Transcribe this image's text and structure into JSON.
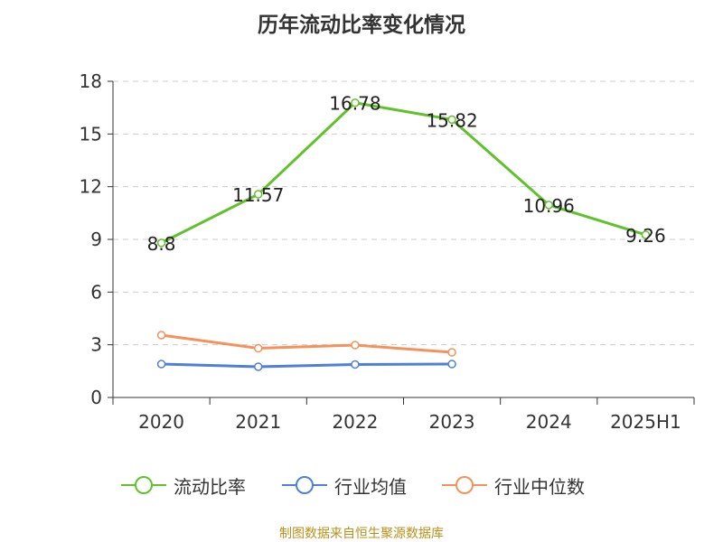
{
  "chart_data": {
    "type": "line",
    "title": "历年流动比率变化情况",
    "categories": [
      "2020",
      "2021",
      "2022",
      "2023",
      "2024",
      "2025H1"
    ],
    "ylim": [
      0,
      18
    ],
    "yticks": [
      0,
      3,
      6,
      9,
      12,
      15,
      18
    ],
    "grid": true,
    "legend_position": "bottom",
    "series": [
      {
        "name": "流动比率",
        "color": "#5fc22b",
        "values": [
          8.8,
          11.57,
          16.78,
          15.82,
          10.96,
          9.26
        ],
        "value_labels": [
          "8.8",
          "11.57",
          "16.78",
          "15.82",
          "10.96",
          "9.26"
        ],
        "show_labels": true
      },
      {
        "name": "行业均值",
        "color": "#4f7fd9",
        "values": [
          1.9,
          1.75,
          1.88,
          1.9,
          null,
          null
        ],
        "show_labels": false
      },
      {
        "name": "行业中位数",
        "color": "#f5915a",
        "values": [
          3.55,
          2.8,
          2.98,
          2.57,
          null,
          null
        ],
        "show_labels": false
      }
    ]
  },
  "footer": {
    "source": "制图数据来自恒生聚源数据库"
  }
}
